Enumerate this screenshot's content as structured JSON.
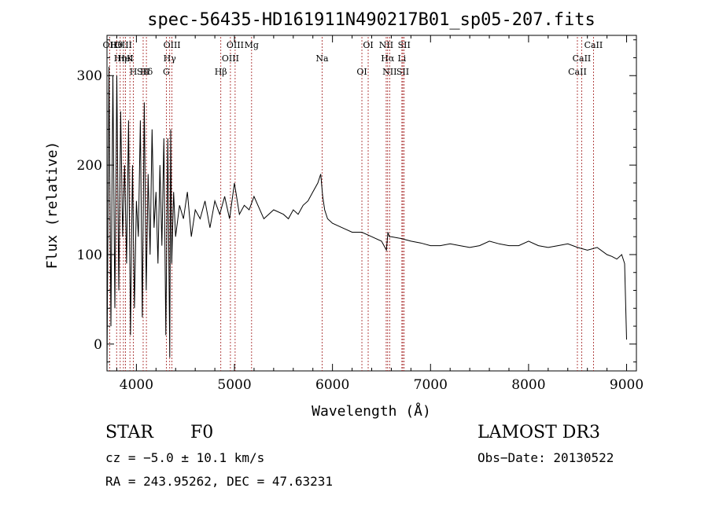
{
  "chart_data": {
    "type": "line",
    "title": "spec-56435-HD161911N490217B01_sp05-207.fits",
    "xlabel": "Wavelength (Å)",
    "ylabel": "Flux (relative)",
    "xlim": [
      3700,
      9100
    ],
    "ylim": [
      -30,
      345
    ],
    "xticks": [
      4000,
      5000,
      6000,
      7000,
      8000,
      9000
    ],
    "yticks": [
      0,
      100,
      200,
      300
    ],
    "series": [
      {
        "name": "spectrum",
        "x": [
          3700,
          3720,
          3740,
          3760,
          3780,
          3800,
          3820,
          3840,
          3860,
          3880,
          3900,
          3920,
          3940,
          3960,
          3980,
          4000,
          4020,
          4040,
          4060,
          4080,
          4100,
          4120,
          4140,
          4160,
          4180,
          4200,
          4220,
          4240,
          4260,
          4280,
          4300,
          4320,
          4340,
          4350,
          4360,
          4380,
          4400,
          4440,
          4480,
          4520,
          4560,
          4600,
          4650,
          4700,
          4750,
          4800,
          4850,
          4900,
          4950,
          5000,
          5050,
          5100,
          5150,
          5200,
          5300,
          5400,
          5500,
          5550,
          5600,
          5650,
          5700,
          5750,
          5800,
          5850,
          5880,
          5900,
          5920,
          5950,
          6000,
          6100,
          6200,
          6300,
          6400,
          6500,
          6550,
          6565,
          6580,
          6600,
          6700,
          6800,
          6900,
          7000,
          7100,
          7200,
          7300,
          7400,
          7500,
          7600,
          7700,
          7800,
          7900,
          8000,
          8100,
          8200,
          8300,
          8400,
          8500,
          8600,
          8700,
          8800,
          8850,
          8900,
          8950,
          8980,
          9000
        ],
        "values": [
          -30,
          310,
          20,
          300,
          40,
          300,
          60,
          260,
          120,
          200,
          90,
          250,
          10,
          200,
          40,
          160,
          120,
          250,
          30,
          270,
          60,
          190,
          100,
          240,
          130,
          170,
          90,
          200,
          110,
          230,
          10,
          230,
          -15,
          240,
          90,
          170,
          120,
          155,
          140,
          170,
          120,
          150,
          140,
          160,
          130,
          160,
          145,
          165,
          140,
          180,
          145,
          155,
          150,
          165,
          140,
          150,
          145,
          140,
          150,
          145,
          155,
          160,
          170,
          180,
          190,
          165,
          150,
          140,
          135,
          130,
          125,
          125,
          120,
          115,
          105,
          125,
          120,
          120,
          118,
          115,
          113,
          110,
          110,
          112,
          110,
          108,
          110,
          115,
          112,
          110,
          110,
          115,
          110,
          108,
          110,
          112,
          108,
          105,
          108,
          100,
          98,
          95,
          100,
          90,
          5
        ]
      }
    ],
    "line_markers": [
      {
        "label": "Hθ",
        "wavelength": 3798
      },
      {
        "label": "K",
        "wavelength": 3934
      },
      {
        "label": "Hδ",
        "wavelength": 4102
      },
      {
        "label": "OII",
        "wavelength": 3727
      },
      {
        "label": "HeI",
        "wavelength": 3889
      },
      {
        "label": "SII",
        "wavelength": 4069
      },
      {
        "label": "OIII",
        "wavelength": 3868
      },
      {
        "label": "Hη",
        "wavelength": 3835
      },
      {
        "label": "H",
        "wavelength": 3969
      },
      {
        "label": "OIII",
        "wavelength": 4363
      },
      {
        "label": "Hγ",
        "wavelength": 4340
      },
      {
        "label": "G",
        "wavelength": 4305
      },
      {
        "label": "OIII",
        "wavelength": 5007
      },
      {
        "label": "OIII",
        "wavelength": 4959
      },
      {
        "label": "Hβ",
        "wavelength": 4861
      },
      {
        "label": "Mg",
        "wavelength": 5175
      },
      {
        "label": "Na",
        "wavelength": 5894
      },
      {
        "label": "OI",
        "wavelength": 6300
      },
      {
        "label": "OI",
        "wavelength": 6364
      },
      {
        "label": "Hα",
        "wavelength": 6563
      },
      {
        "label": "SII",
        "wavelength": 6717
      },
      {
        "label": "NII",
        "wavelength": 6548
      },
      {
        "label": "Li",
        "wavelength": 6708
      },
      {
        "label": "NII",
        "wavelength": 6583
      },
      {
        "label": "SII",
        "wavelength": 6731
      },
      {
        "label": "CaII",
        "wavelength": 8542
      },
      {
        "label": "CaII",
        "wavelength": 8498
      },
      {
        "label": "CaII",
        "wavelength": 8662
      }
    ]
  },
  "info": {
    "object_class": "STAR",
    "subclass": "F0",
    "survey": "LAMOST DR3",
    "redshift": "cz = −5.0 ± 10.1 km/s",
    "obs_date": "Obs−Date: 20130522",
    "coords": "RA = 243.95262, DEC =  47.63231"
  },
  "colors": {
    "spectrum": "#000000",
    "markers": "#a01818",
    "axes": "#000000"
  }
}
